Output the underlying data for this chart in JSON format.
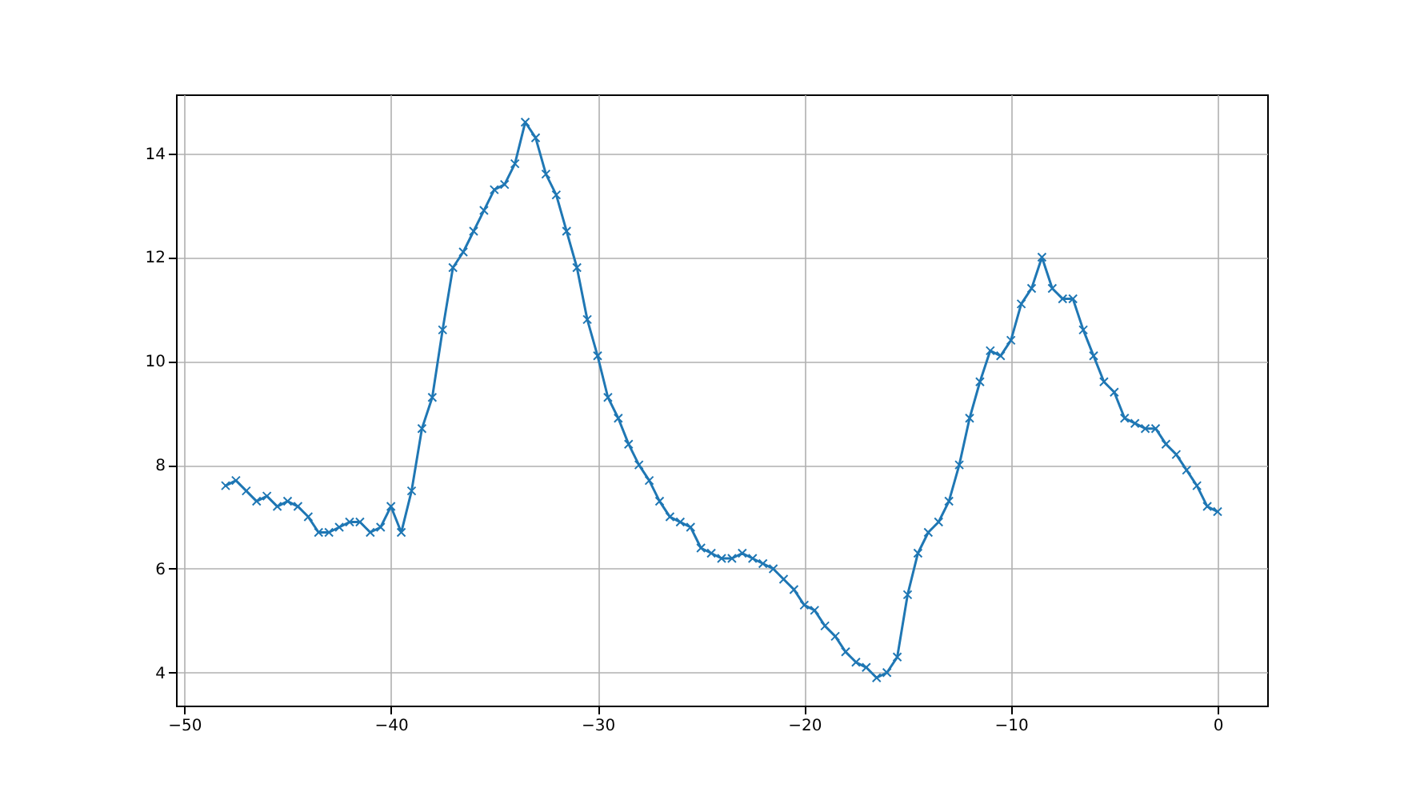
{
  "chart_data": {
    "type": "line",
    "x": [
      -48,
      -47.5,
      -47,
      -46.5,
      -46,
      -45.5,
      -45,
      -44.5,
      -44,
      -43.5,
      -43,
      -42.5,
      -42,
      -41.5,
      -41,
      -40.5,
      -40,
      -39.5,
      -39,
      -38.5,
      -38,
      -37.5,
      -37,
      -36.5,
      -36,
      -35.5,
      -35,
      -34.5,
      -34,
      -33.5,
      -33,
      -32.5,
      -32,
      -31.5,
      -31,
      -30.5,
      -30,
      -29.5,
      -29,
      -28.5,
      -28,
      -27.5,
      -27,
      -26.5,
      -26,
      -25.5,
      -25,
      -24.5,
      -24,
      -23.5,
      -23,
      -22.5,
      -22,
      -21.5,
      -21,
      -20.5,
      -20,
      -19.5,
      -19,
      -18.5,
      -18,
      -17.5,
      -17,
      -16.5,
      -16,
      -15.5,
      -15,
      -14.5,
      -14,
      -13.5,
      -13,
      -12.5,
      -12,
      -11.5,
      -11,
      -10.5,
      -10,
      -9.5,
      -9,
      -8.5,
      -8,
      -7.5,
      -7,
      -6.5,
      -6,
      -5.5,
      -5,
      -4.5,
      -4,
      -3.5,
      -3,
      -2.5,
      -2,
      -1.5,
      -1,
      -0.5,
      0
    ],
    "series": [
      {
        "color": "#1f77b4",
        "values": [
          7.6,
          7.7,
          7.5,
          7.3,
          7.4,
          7.2,
          7.3,
          7.2,
          7.0,
          6.7,
          6.7,
          6.8,
          6.9,
          6.9,
          6.7,
          6.8,
          7.2,
          6.7,
          7.5,
          8.7,
          9.3,
          10.6,
          11.8,
          12.1,
          12.5,
          12.9,
          13.3,
          13.4,
          13.8,
          14.6,
          14.3,
          13.6,
          13.2,
          12.5,
          11.8,
          10.8,
          10.1,
          9.3,
          8.9,
          8.4,
          8.0,
          7.7,
          7.3,
          7.0,
          6.9,
          6.8,
          6.4,
          6.3,
          6.2,
          6.2,
          6.3,
          6.2,
          6.1,
          6.0,
          5.8,
          5.6,
          5.3,
          5.2,
          4.9,
          4.7,
          4.4,
          4.2,
          4.1,
          3.9,
          4.0,
          4.3,
          5.5,
          6.3,
          6.7,
          6.9,
          7.3,
          8.0,
          8.9,
          9.6,
          10.2,
          10.1,
          10.4,
          11.1,
          11.4,
          12.0,
          11.4,
          11.2,
          11.2,
          10.6,
          10.1,
          9.6,
          9.4,
          8.9,
          8.8,
          8.7,
          8.7,
          8.4,
          8.2,
          7.9,
          7.6,
          7.2,
          7.1
        ]
      }
    ],
    "xlim": [
      -50.4,
      2.4
    ],
    "ylim": [
      3.365,
      15.135
    ],
    "xticks": [
      -50,
      -40,
      -30,
      -20,
      -10,
      0
    ],
    "yticks": [
      4,
      6,
      8,
      10,
      12,
      14
    ],
    "grid": true,
    "marker": "cross",
    "line_style": "solid"
  }
}
